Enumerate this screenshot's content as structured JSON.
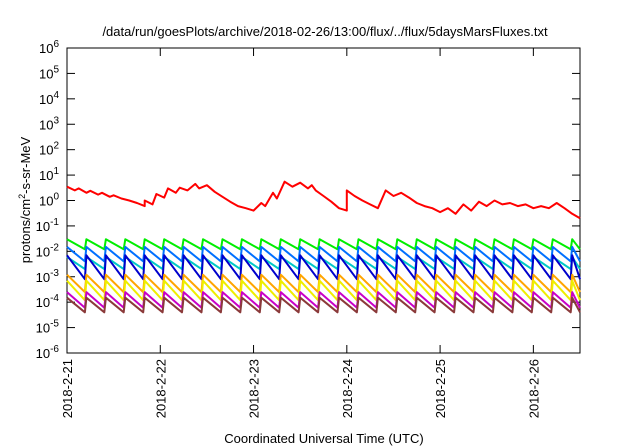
{
  "chart_data": {
    "type": "line",
    "title": "/data/run/goesPlots/archive/2018-02-26/13:00/flux/../flux/5daysMarsFluxes.txt",
    "xlabel": "Coordinated Universal Time (UTC)",
    "ylabel": {
      "prefix": "protons/cm",
      "sup": "2",
      "suffix": "-s-sr-MeV"
    },
    "y_scale": "log",
    "ylim": [
      1e-06,
      1000000.0
    ],
    "y_ticks": [
      {
        "base": "10",
        "exp": "-6",
        "value": 1e-06
      },
      {
        "base": "10",
        "exp": "-5",
        "value": 1e-05
      },
      {
        "base": "10",
        "exp": "-4",
        "value": 0.0001
      },
      {
        "base": "10",
        "exp": "-3",
        "value": 0.001
      },
      {
        "base": "10",
        "exp": "-2",
        "value": 0.01
      },
      {
        "base": "10",
        "exp": "-1",
        "value": 0.1
      },
      {
        "base": "10",
        "exp": "0",
        "value": 1
      },
      {
        "base": "10",
        "exp": "1",
        "value": 10
      },
      {
        "base": "10",
        "exp": "2",
        "value": 100
      },
      {
        "base": "10",
        "exp": "3",
        "value": 1000
      },
      {
        "base": "10",
        "exp": "4",
        "value": 10000
      },
      {
        "base": "10",
        "exp": "5",
        "value": 100000
      },
      {
        "base": "10",
        "exp": "6",
        "value": 1000000
      }
    ],
    "xlim": [
      "2018-02-21T00:00",
      "2018-02-26T12:00"
    ],
    "x_ticks": [
      {
        "label": "2018-2-21",
        "value": "2018-02-21T00:00"
      },
      {
        "label": "2018-2-22",
        "value": "2018-02-22T00:00"
      },
      {
        "label": "2018-2-23",
        "value": "2018-02-23T00:00"
      },
      {
        "label": "2018-2-24",
        "value": "2018-02-24T00:00"
      },
      {
        "label": "2018-2-25",
        "value": "2018-02-25T00:00"
      },
      {
        "label": "2018-2-26",
        "value": "2018-02-26T00:00"
      }
    ],
    "grid": false,
    "legend": "none",
    "series": [
      {
        "color": "#ff0000",
        "x": [
          "2018-02-21T00:00",
          "2018-02-21T02:00",
          "2018-02-21T03:00",
          "2018-02-21T05:00",
          "2018-02-21T06:00",
          "2018-02-21T08:00",
          "2018-02-21T09:00",
          "2018-02-21T11:00",
          "2018-02-21T12:00",
          "2018-02-21T14:00",
          "2018-02-21T16:00",
          "2018-02-21T18:00",
          "2018-02-21T20:00",
          "2018-02-21T20:00",
          "2018-02-21T22:00",
          "2018-02-21T23:00",
          "2018-02-22T01:00",
          "2018-02-22T02:00",
          "2018-02-22T04:00",
          "2018-02-22T05:00",
          "2018-02-22T07:00",
          "2018-02-22T09:00",
          "2018-02-22T10:00",
          "2018-02-22T12:00",
          "2018-02-22T14:00",
          "2018-02-22T16:00",
          "2018-02-22T18:00",
          "2018-02-22T20:00",
          "2018-02-22T22:00",
          "2018-02-23T00:00",
          "2018-02-23T02:00",
          "2018-02-23T03:00",
          "2018-02-23T05:00",
          "2018-02-23T06:00",
          "2018-02-23T08:00",
          "2018-02-23T10:00",
          "2018-02-23T12:00",
          "2018-02-23T14:00",
          "2018-02-23T15:00",
          "2018-02-23T16:00",
          "2018-02-23T18:00",
          "2018-02-23T20:00",
          "2018-02-23T22:00",
          "2018-02-24T00:00",
          "2018-02-24T00:00",
          "2018-02-24T02:00",
          "2018-02-24T04:00",
          "2018-02-24T06:00",
          "2018-02-24T08:00",
          "2018-02-24T10:00",
          "2018-02-24T12:00",
          "2018-02-24T14:00",
          "2018-02-24T16:00",
          "2018-02-24T18:00",
          "2018-02-24T20:00",
          "2018-02-24T22:00",
          "2018-02-25T00:00",
          "2018-02-25T02:00",
          "2018-02-25T04:00",
          "2018-02-25T06:00",
          "2018-02-25T08:00",
          "2018-02-25T10:00",
          "2018-02-25T12:00",
          "2018-02-25T14:00",
          "2018-02-25T16:00",
          "2018-02-25T18:00",
          "2018-02-25T20:00",
          "2018-02-25T22:00",
          "2018-02-26T00:00",
          "2018-02-26T02:00",
          "2018-02-26T04:00",
          "2018-02-26T06:00",
          "2018-02-26T08:00",
          "2018-02-26T10:00",
          "2018-02-26T12:00"
        ],
        "y": [
          3.5,
          2.5,
          3.0,
          2.0,
          2.4,
          1.7,
          2.0,
          1.4,
          1.6,
          1.2,
          1.0,
          0.8,
          0.6,
          1.0,
          0.7,
          1.8,
          1.3,
          3.0,
          2.0,
          3.2,
          2.5,
          4.5,
          3.0,
          4.0,
          2.2,
          1.4,
          0.9,
          0.6,
          0.5,
          0.4,
          0.8,
          0.6,
          2.0,
          1.2,
          5.5,
          3.5,
          5.0,
          3.0,
          4.0,
          2.5,
          1.5,
          0.9,
          0.5,
          0.4,
          2.5,
          1.5,
          1.0,
          0.7,
          0.5,
          2.5,
          1.5,
          2.0,
          1.3,
          0.8,
          0.6,
          0.5,
          0.35,
          0.5,
          0.3,
          0.7,
          0.4,
          0.9,
          0.6,
          1.0,
          0.7,
          0.8,
          0.6,
          0.7,
          0.5,
          0.6,
          0.5,
          0.8,
          0.5,
          0.3,
          0.2
        ]
      },
      {
        "color": "#00ee00",
        "sawtooth": {
          "period_hours": 5,
          "peak": 0.03,
          "trough": 0.012
        }
      },
      {
        "color": "#0070ff",
        "sawtooth": {
          "period_hours": 5,
          "peak": 0.015,
          "trough": 0.004
        }
      },
      {
        "color": "#00c8c8",
        "sawtooth": {
          "period_hours": 5,
          "peak": 0.006,
          "trough": 0.002
        }
      },
      {
        "color": "#0000cc",
        "sawtooth": {
          "period_hours": 5,
          "peak": 0.007,
          "trough": 0.0008
        }
      },
      {
        "color": "#ffa500",
        "sawtooth": {
          "period_hours": 5,
          "peak": 0.0012,
          "trough": 0.00025
        }
      },
      {
        "color": "#eeee00",
        "sawtooth": {
          "period_hours": 5,
          "peak": 0.0007,
          "trough": 0.00012
        }
      },
      {
        "color": "#c800c8",
        "sawtooth": {
          "period_hours": 5,
          "peak": 0.00025,
          "trough": 6e-05
        }
      },
      {
        "color": "#8b3a3a",
        "sawtooth": {
          "period_hours": 5,
          "peak": 0.00015,
          "trough": 4e-05
        }
      }
    ]
  }
}
